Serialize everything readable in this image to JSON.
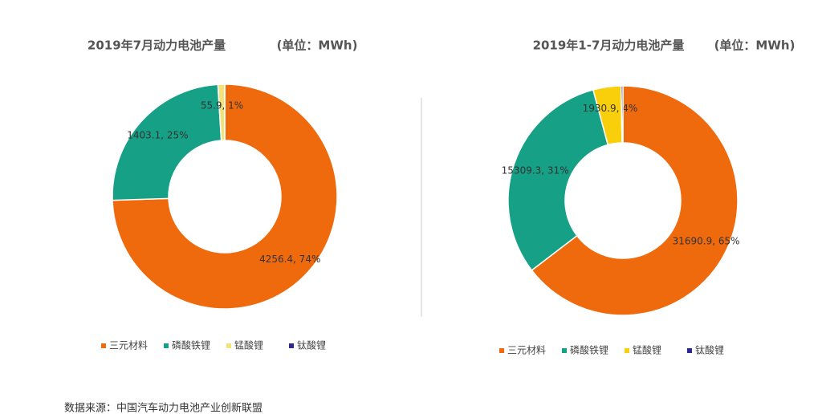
{
  "chart_data": [
    {
      "type": "pie",
      "title": "2019年7月动力电池产量",
      "subtitle": "(单位：MWh)",
      "categories": [
        "三元材料",
        "磷酸铁锂",
        "锰酸锂",
        "钛酸锂"
      ],
      "values": [
        4256.4,
        1403.1,
        55.9,
        0
      ],
      "value_labels": [
        "4256.4, 74%",
        "1403.1, 25%",
        "55.9, 1%",
        null
      ],
      "colors": [
        "#ee6a0c",
        "#16a086",
        "#f1e27a",
        "#2b2b8a"
      ]
    },
    {
      "type": "pie",
      "title": "2019年1-7月动力电池产量",
      "subtitle": "(单位：MWh)",
      "categories": [
        "三元材料",
        "磷酸铁锂",
        "锰酸锂",
        "钛酸锂"
      ],
      "values": [
        31690.9,
        15309.3,
        1930.9,
        120
      ],
      "value_labels": [
        "31690.9, 65%",
        "15309.3, 31%",
        "1930.9, 4%",
        null
      ],
      "colors": [
        "#ee6a0c",
        "#16a086",
        "#f8cf0a",
        "#2b2b8a"
      ]
    }
  ],
  "footer": {
    "source": "数据来源：中国汽车动力电池产业创新联盟"
  }
}
